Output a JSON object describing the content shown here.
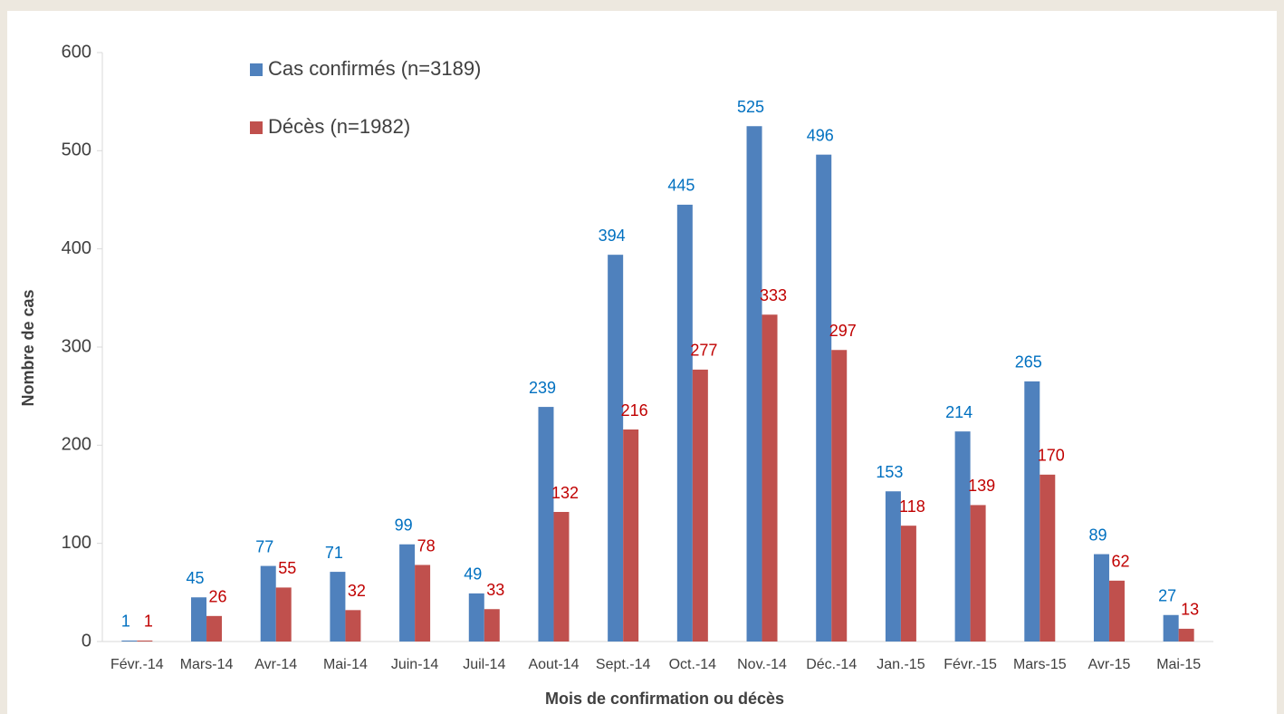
{
  "chart_data": {
    "type": "bar",
    "x_label": "Mois de confirmation ou décès",
    "y_label": "Nombre de cas",
    "categories": [
      "Févr.-14",
      "Mars-14",
      "Avr-14",
      "Mai-14",
      "Juin-14",
      "Juil-14",
      "Aout-14",
      "Sept.-14",
      "Oct.-14",
      "Nov.-14",
      "Déc.-14",
      "Jan.-15",
      "Févr.-15",
      "Mars-15",
      "Avr-15",
      "Mai-15"
    ],
    "series": [
      {
        "name": "Cas confirmés (n=3189)",
        "color": "#4f81bd",
        "label_color": "#0070c0",
        "values": [
          1,
          45,
          77,
          71,
          99,
          49,
          239,
          394,
          445,
          525,
          496,
          153,
          214,
          265,
          89,
          27
        ]
      },
      {
        "name": "Décès (n=1982)",
        "color": "#c0504d",
        "label_color": "#c00000",
        "values": [
          1,
          26,
          55,
          32,
          78,
          33,
          132,
          216,
          277,
          333,
          297,
          118,
          139,
          170,
          62,
          13
        ]
      }
    ],
    "ylim": [
      0,
      600
    ],
    "yticks": [
      0,
      100,
      200,
      300,
      400,
      500,
      600
    ],
    "grid": false
  }
}
